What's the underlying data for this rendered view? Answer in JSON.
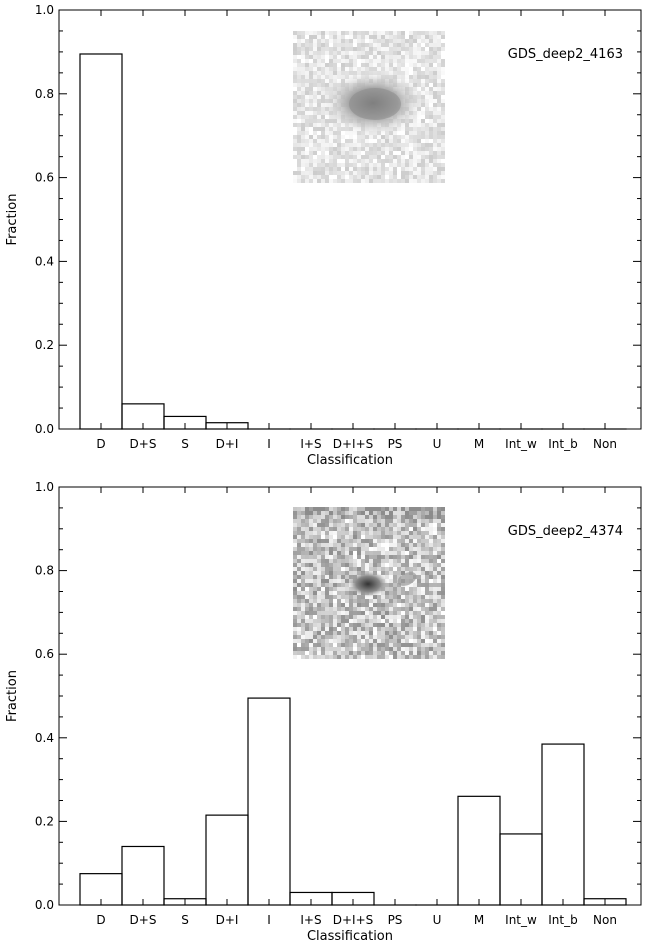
{
  "chart_data": [
    {
      "type": "bar",
      "annotation": "GDS_deep2_4163",
      "xlabel": "Classification",
      "ylabel": "Fraction",
      "categories": [
        "D",
        "D+S",
        "S",
        "D+I",
        "I",
        "I+S",
        "D+I+S",
        "PS",
        "U",
        "M",
        "Int_w",
        "Int_b",
        "Non"
      ],
      "values": [
        0.895,
        0.06,
        0.03,
        0.015,
        0.0,
        0.0,
        0.0,
        0.0,
        0.0,
        0.0,
        0.0,
        0.0,
        0.0
      ],
      "ylim": [
        0,
        1.0
      ],
      "yticks": [
        "0.0",
        "0.2",
        "0.4",
        "0.6",
        "0.8",
        "1.0"
      ],
      "style": "step histogram",
      "inset": "galaxy-image-smooth"
    },
    {
      "type": "bar",
      "annotation": "GDS_deep2_4374",
      "xlabel": "Classification",
      "ylabel": "Fraction",
      "categories": [
        "D",
        "D+S",
        "S",
        "D+I",
        "I",
        "I+S",
        "D+I+S",
        "PS",
        "U",
        "M",
        "Int_w",
        "Int_b",
        "Non"
      ],
      "values": [
        0.075,
        0.14,
        0.015,
        0.215,
        0.495,
        0.03,
        0.03,
        0.0,
        0.0,
        0.26,
        0.17,
        0.385,
        0.015
      ],
      "ylim": [
        0,
        1.0
      ],
      "yticks": [
        "0.0",
        "0.2",
        "0.4",
        "0.6",
        "0.8",
        "1.0"
      ],
      "style": "step histogram",
      "inset": "galaxy-image-noisy"
    }
  ]
}
